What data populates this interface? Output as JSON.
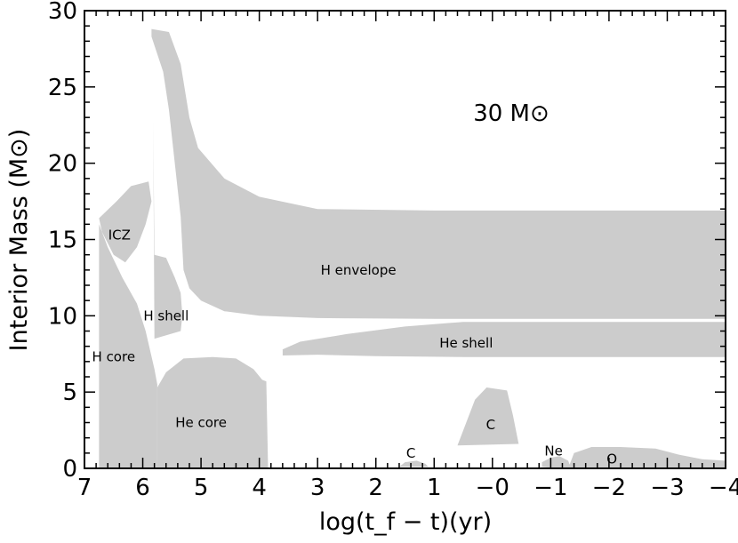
{
  "chart_data": {
    "type": "area",
    "title": "30 M⊙",
    "xlabel": "log(t_f − t)(yr)",
    "ylabel": "Interior Mass (M⊙)",
    "xlim": [
      7,
      -4
    ],
    "ylim": [
      0,
      30
    ],
    "x_ticks": [
      7,
      6,
      5,
      4,
      3,
      2,
      1,
      0,
      -1,
      -2,
      -3,
      -4
    ],
    "x_tick_labels": [
      "7",
      "6",
      "5",
      "4",
      "3",
      "2",
      "1",
      "−0",
      "−1",
      "−2",
      "−3",
      "−4"
    ],
    "y_ticks": [
      0,
      5,
      10,
      15,
      20,
      25,
      30
    ],
    "y_tick_labels": [
      "0",
      "5",
      "10",
      "15",
      "20",
      "25",
      "30"
    ],
    "colors": {
      "region": "#cccccc",
      "axis": "#000000"
    },
    "regions": [
      {
        "name": "H envelope",
        "label_at": [
          2.3,
          13.0
        ],
        "points": [
          [
            5.85,
            28.8
          ],
          [
            5.55,
            28.6
          ],
          [
            5.35,
            26.5
          ],
          [
            5.2,
            23.0
          ],
          [
            5.05,
            21.0
          ],
          [
            4.6,
            19.0
          ],
          [
            4.0,
            17.8
          ],
          [
            3.0,
            17.0
          ],
          [
            1.0,
            16.9
          ],
          [
            -4.0,
            16.9
          ],
          [
            -4.0,
            9.8
          ],
          [
            1.0,
            9.8
          ],
          [
            3.0,
            9.85
          ],
          [
            4.0,
            10.0
          ],
          [
            4.6,
            10.3
          ],
          [
            5.0,
            11.0
          ],
          [
            5.2,
            11.8
          ],
          [
            5.3,
            13.0
          ],
          [
            5.35,
            16.5
          ],
          [
            5.45,
            20.0
          ],
          [
            5.55,
            23.5
          ],
          [
            5.65,
            26.0
          ],
          [
            5.85,
            28.3
          ]
        ]
      },
      {
        "name": "ICZ",
        "label_at": [
          6.4,
          15.3
        ],
        "points": [
          [
            6.75,
            16.4
          ],
          [
            6.45,
            17.5
          ],
          [
            6.2,
            18.5
          ],
          [
            5.9,
            18.8
          ],
          [
            5.85,
            17.5
          ],
          [
            5.95,
            16.0
          ],
          [
            6.1,
            14.5
          ],
          [
            6.3,
            13.5
          ],
          [
            6.5,
            14.0
          ],
          [
            6.7,
            15.5
          ]
        ]
      },
      {
        "name": "H shell",
        "label_at": [
          5.6,
          10.0
        ],
        "points": [
          [
            5.82,
            22.8
          ],
          [
            5.8,
            14.0
          ],
          [
            5.6,
            13.8
          ],
          [
            5.45,
            12.5
          ],
          [
            5.35,
            11.5
          ],
          [
            5.32,
            10.0
          ],
          [
            5.35,
            9.0
          ],
          [
            5.8,
            8.5
          ]
        ]
      },
      {
        "name": "H core",
        "label_at": [
          6.5,
          7.3
        ],
        "points": [
          [
            6.75,
            0
          ],
          [
            6.75,
            16.0
          ],
          [
            6.6,
            14.5
          ],
          [
            6.35,
            12.5
          ],
          [
            6.1,
            10.8
          ],
          [
            5.95,
            9.0
          ],
          [
            5.8,
            6.5
          ],
          [
            5.75,
            5.5
          ],
          [
            5.75,
            0
          ]
        ]
      },
      {
        "name": "He core",
        "label_at": [
          5.0,
          3.0
        ],
        "points": [
          [
            5.75,
            0
          ],
          [
            5.75,
            5.3
          ],
          [
            5.6,
            6.3
          ],
          [
            5.3,
            7.2
          ],
          [
            4.8,
            7.3
          ],
          [
            4.4,
            7.2
          ],
          [
            4.1,
            6.5
          ],
          [
            3.95,
            5.8
          ],
          [
            3.88,
            5.7
          ],
          [
            3.85,
            0
          ]
        ]
      },
      {
        "name": "He shell",
        "label_at": [
          0.45,
          8.2
        ],
        "points": [
          [
            3.6,
            7.8
          ],
          [
            3.3,
            8.3
          ],
          [
            2.5,
            8.8
          ],
          [
            1.5,
            9.3
          ],
          [
            0.5,
            9.6
          ],
          [
            -4.0,
            9.6
          ],
          [
            -4.0,
            7.3
          ],
          [
            0.5,
            7.3
          ],
          [
            2.0,
            7.35
          ],
          [
            3.0,
            7.45
          ],
          [
            3.6,
            7.4
          ]
        ]
      },
      {
        "name": "C",
        "label_at": [
          1.4,
          1.0
        ],
        "points": [
          [
            1.6,
            0.1
          ],
          [
            1.5,
            0.4
          ],
          [
            1.3,
            0.5
          ],
          [
            1.15,
            0.3
          ],
          [
            1.1,
            0.1
          ]
        ]
      },
      {
        "name": "C",
        "label_at": [
          0.03,
          2.85
        ],
        "points": [
          [
            0.6,
            1.5
          ],
          [
            0.3,
            4.5
          ],
          [
            0.1,
            5.3
          ],
          [
            -0.25,
            5.1
          ],
          [
            -0.35,
            3.5
          ],
          [
            -0.45,
            1.6
          ]
        ]
      },
      {
        "name": "Ne",
        "label_at": [
          -1.05,
          1.15
        ],
        "points": [
          [
            -0.85,
            0.4
          ],
          [
            -1.0,
            0.7
          ],
          [
            -1.15,
            0.8
          ],
          [
            -1.3,
            0.5
          ],
          [
            -1.35,
            0.0
          ],
          [
            -1.1,
            0.0
          ],
          [
            -0.85,
            0.1
          ]
        ]
      },
      {
        "name": "O",
        "label_at": [
          -2.05,
          0.6
        ],
        "points": [
          [
            -1.3,
            0.0
          ],
          [
            -1.4,
            1.0
          ],
          [
            -1.7,
            1.4
          ],
          [
            -2.2,
            1.4
          ],
          [
            -2.8,
            1.3
          ],
          [
            -3.2,
            0.9
          ],
          [
            -3.6,
            0.6
          ],
          [
            -4.0,
            0.5
          ],
          [
            -4.0,
            0.0
          ]
        ]
      }
    ]
  }
}
